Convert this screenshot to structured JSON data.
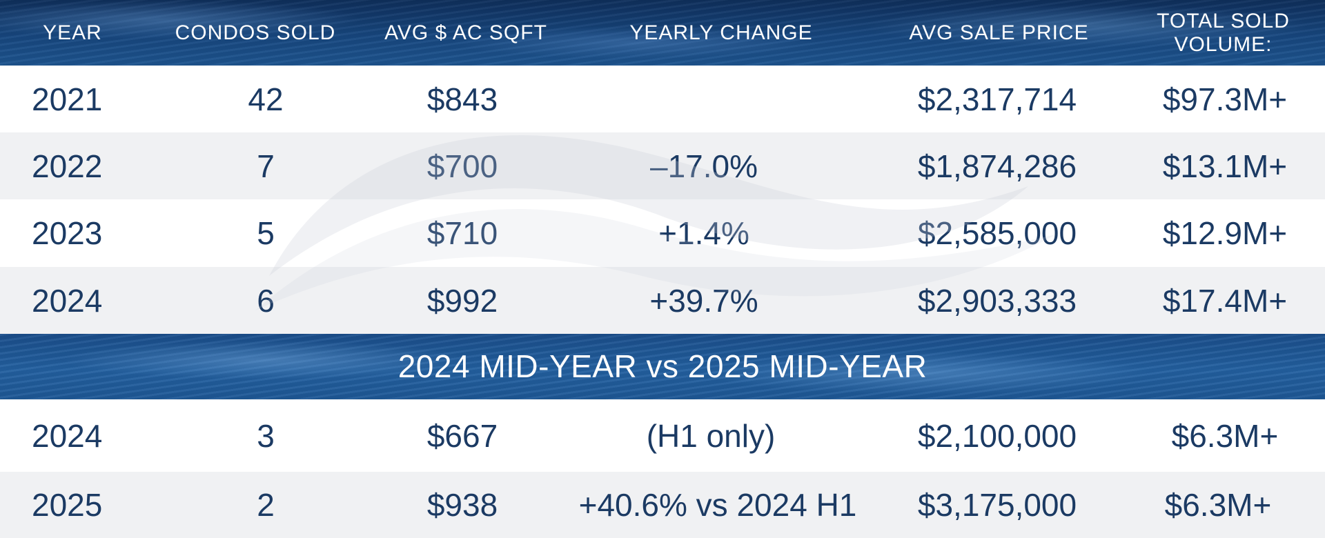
{
  "header": {
    "columns": [
      {
        "label": "YEAR"
      },
      {
        "label": "CONDOS SOLD"
      },
      {
        "label": "AVG $ AC SQFT"
      },
      {
        "label": "YEARLY CHANGE"
      },
      {
        "label": "AVG SALE PRICE"
      },
      {
        "label": "TOTAL SOLD VOLUME:"
      }
    ]
  },
  "annual_rows": [
    {
      "year": "2021",
      "condos_sold": "42",
      "avg_sqft": "$843",
      "yearly_change": "",
      "avg_sale_price": "$2,317,714",
      "total_volume": "$97.3M+"
    },
    {
      "year": "2022",
      "condos_sold": "7",
      "avg_sqft": "$700",
      "yearly_change": "–17.0%",
      "avg_sale_price": "$1,874,286",
      "total_volume": "$13.1M+"
    },
    {
      "year": "2023",
      "condos_sold": "5",
      "avg_sqft": "$710",
      "yearly_change": "+1.4%",
      "avg_sale_price": "$2,585,000",
      "total_volume": "$12.9M+"
    },
    {
      "year": "2024",
      "condos_sold": "6",
      "avg_sqft": "$992",
      "yearly_change": "+39.7%",
      "avg_sale_price": "$2,903,333",
      "total_volume": "$17.4M+"
    }
  ],
  "section_title": "2024 MID-YEAR vs 2025 MID-YEAR",
  "midyear_rows": [
    {
      "year": "2024",
      "condos_sold": "3",
      "avg_sqft": "$667",
      "yearly_change": "(H1 only)",
      "avg_sale_price": "$2,100,000",
      "total_volume": "$6.3M+"
    },
    {
      "year": "2025",
      "condos_sold": "2",
      "avg_sqft": "$938",
      "yearly_change": "+40.6% vs 2024 H1",
      "avg_sale_price": "$3,175,000",
      "total_volume": "$6.3M+"
    }
  ],
  "colors": {
    "header_bg": "#123a6d",
    "band_bg": "#1e5896",
    "text": "#1b3a63",
    "row_alt": "#f0f1f3"
  },
  "watermark_icon": "wave-swoosh-icon"
}
